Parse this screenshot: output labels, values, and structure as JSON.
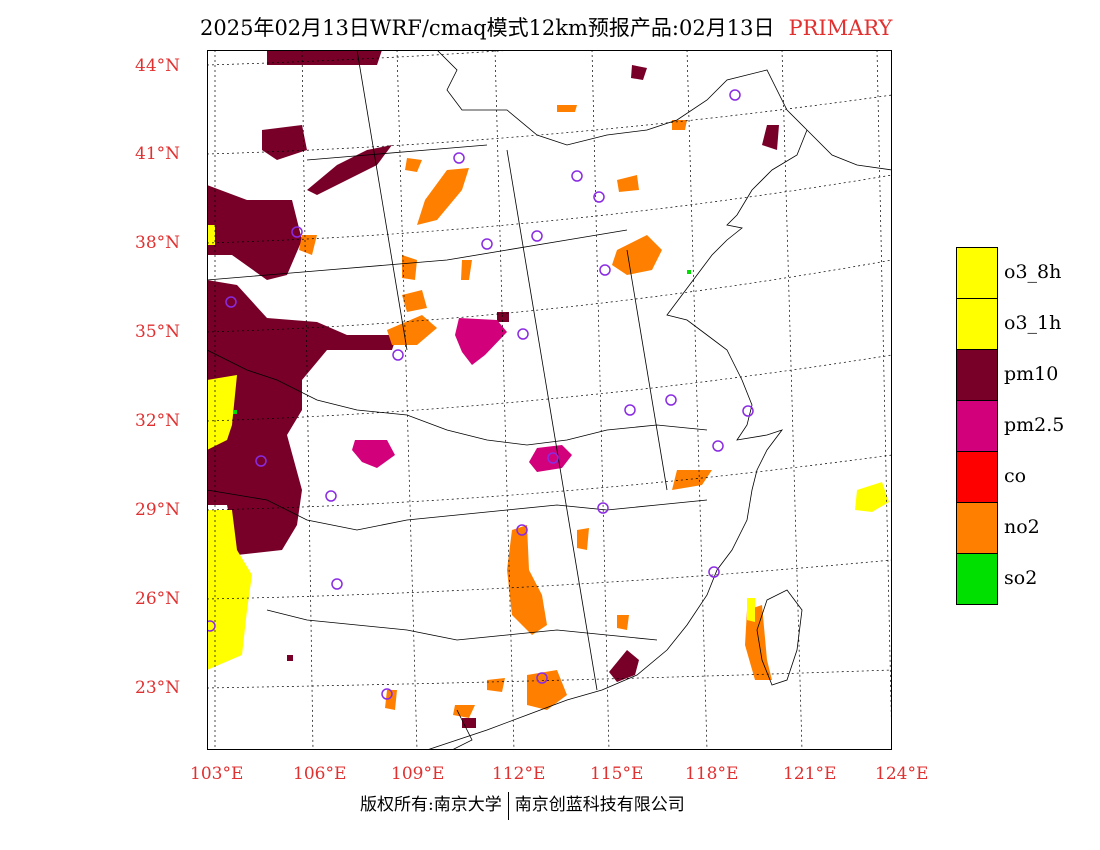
{
  "title": {
    "main": "2025年02月13日WRF/cmaq模式12km预报产品:02月13日",
    "tag": "PRIMARY"
  },
  "axes": {
    "lat_labels": [
      "44°N",
      "41°N",
      "38°N",
      "35°N",
      "32°N",
      "29°N",
      "26°N",
      "23°N"
    ],
    "lon_labels": [
      "103°E",
      "106°E",
      "109°E",
      "112°E",
      "115°E",
      "118°E",
      "121°E",
      "124°E"
    ]
  },
  "legend": {
    "items": [
      {
        "label": "o3_8h",
        "color": "#ffff00"
      },
      {
        "label": "o3_1h",
        "color": "#ffff00"
      },
      {
        "label": "pm10",
        "color": "#780028"
      },
      {
        "label": "pm2.5",
        "color": "#d2007a"
      },
      {
        "label": "co",
        "color": "#ff0000"
      },
      {
        "label": "no2",
        "color": "#ff8000"
      },
      {
        "label": "so2",
        "color": "#00e000"
      }
    ]
  },
  "footer": {
    "left": "版权所有:南京大学",
    "right": "南京创蓝科技有限公司"
  }
}
